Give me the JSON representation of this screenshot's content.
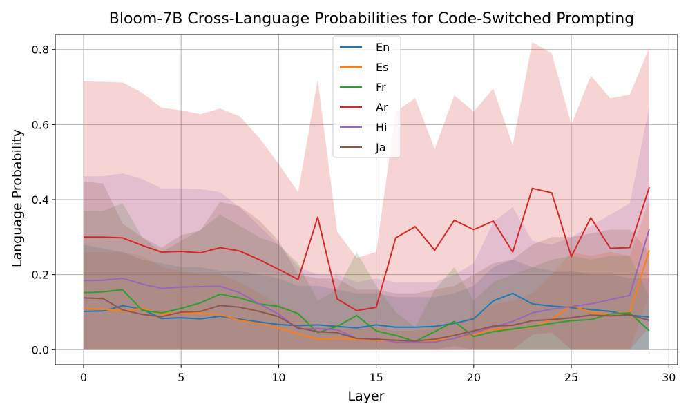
{
  "chart_data": {
    "type": "line",
    "title": "Bloom-7B Cross-Language Probabilities for Code-Switched Prompting",
    "xlabel": "Layer",
    "ylabel": "Language Probability",
    "xlim": [
      -1.45,
      30.45
    ],
    "ylim": [
      -0.04,
      0.84
    ],
    "xticks": [
      0,
      5,
      10,
      15,
      20,
      25,
      30
    ],
    "yticks": [
      0.0,
      0.2,
      0.4,
      0.6,
      0.8
    ],
    "ytick_labels": [
      "0.0",
      "0.2",
      "0.4",
      "0.6",
      "0.8"
    ],
    "grid": true,
    "legend_position": "top-center",
    "x": [
      0,
      1,
      2,
      3,
      4,
      5,
      6,
      7,
      8,
      9,
      10,
      11,
      12,
      13,
      14,
      15,
      16,
      17,
      18,
      19,
      20,
      21,
      22,
      23,
      24,
      25,
      26,
      27,
      28,
      29
    ],
    "series": [
      {
        "name": "En",
        "color": "#1f77b4",
        "values": [
          0.102,
          0.103,
          0.117,
          0.108,
          0.083,
          0.085,
          0.082,
          0.089,
          0.081,
          0.074,
          0.067,
          0.064,
          0.066,
          0.062,
          0.058,
          0.066,
          0.06,
          0.06,
          0.062,
          0.07,
          0.082,
          0.13,
          0.15,
          0.122,
          0.116,
          0.112,
          0.107,
          0.102,
          0.092,
          0.087
        ],
        "upper": [
          0.28,
          0.27,
          0.26,
          0.24,
          0.23,
          0.22,
          0.22,
          0.21,
          0.21,
          0.2,
          0.19,
          0.17,
          0.17,
          0.16,
          0.15,
          0.15,
          0.14,
          0.14,
          0.14,
          0.15,
          0.17,
          0.22,
          0.24,
          0.22,
          0.21,
          0.21,
          0.2,
          0.2,
          0.19,
          0.19
        ],
        "lower": [
          0,
          0,
          0,
          0,
          0,
          0,
          0,
          0,
          0,
          0,
          0,
          0,
          0,
          0,
          0,
          0,
          0,
          0,
          0,
          0,
          0,
          0,
          0,
          0,
          0,
          0,
          0,
          0,
          0,
          0
        ]
      },
      {
        "name": "Es",
        "color": "#ff7f0e",
        "values": [
          0.11,
          0.108,
          0.103,
          0.11,
          0.095,
          0.097,
          0.097,
          0.094,
          0.078,
          0.07,
          0.058,
          0.042,
          0.028,
          0.03,
          0.028,
          0.026,
          0.022,
          0.022,
          0.025,
          0.03,
          0.04,
          0.055,
          0.055,
          0.06,
          0.08,
          0.118,
          0.1,
          0.095,
          0.1,
          0.265
        ],
        "upper": [
          0.26,
          0.26,
          0.26,
          0.25,
          0.22,
          0.21,
          0.2,
          0.2,
          0.18,
          0.15,
          0.12,
          0.1,
          0.06,
          0.06,
          0.06,
          0.06,
          0.05,
          0.05,
          0.06,
          0.07,
          0.09,
          0.12,
          0.13,
          0.15,
          0.2,
          0.26,
          0.25,
          0.26,
          0.25,
          0.4
        ],
        "lower": [
          0,
          0,
          0,
          0,
          0,
          0,
          0,
          0,
          0,
          0,
          0,
          0,
          0,
          0,
          0,
          0,
          0,
          0,
          0,
          0,
          0,
          0,
          0,
          0,
          0,
          0,
          0,
          0,
          0,
          0.15
        ]
      },
      {
        "name": "Fr",
        "color": "#2ca02c",
        "values": [
          0.152,
          0.154,
          0.16,
          0.105,
          0.098,
          0.11,
          0.125,
          0.148,
          0.138,
          0.122,
          0.115,
          0.096,
          0.045,
          0.062,
          0.091,
          0.05,
          0.038,
          0.022,
          0.048,
          0.075,
          0.035,
          0.048,
          0.055,
          0.062,
          0.07,
          0.077,
          0.08,
          0.095,
          0.098,
          0.05
        ],
        "upper": [
          0.37,
          0.37,
          0.39,
          0.3,
          0.26,
          0.29,
          0.32,
          0.36,
          0.33,
          0.3,
          0.28,
          0.23,
          0.13,
          0.16,
          0.26,
          0.17,
          0.1,
          0.06,
          0.16,
          0.22,
          0.13,
          0.18,
          0.2,
          0.22,
          0.24,
          0.25,
          0.24,
          0.25,
          0.25,
          0.14
        ],
        "lower": [
          0,
          0,
          0,
          0,
          0,
          0,
          0,
          0,
          0,
          0,
          0,
          0,
          0,
          0,
          0,
          0,
          0,
          0,
          0,
          0.01,
          0,
          0,
          0,
          0,
          0,
          0,
          0,
          0,
          0,
          0
        ]
      },
      {
        "name": "Ar",
        "color": "#d62728",
        "values": [
          0.3,
          0.3,
          0.298,
          0.278,
          0.26,
          0.262,
          0.258,
          0.272,
          0.263,
          0.24,
          0.214,
          0.187,
          0.353,
          0.135,
          0.104,
          0.113,
          0.298,
          0.328,
          0.265,
          0.345,
          0.32,
          0.343,
          0.26,
          0.43,
          0.418,
          0.248,
          0.352,
          0.27,
          0.272,
          0.433
        ],
        "upper": [
          0.715,
          0.714,
          0.712,
          0.685,
          0.645,
          0.638,
          0.628,
          0.643,
          0.622,
          0.565,
          0.495,
          0.42,
          0.72,
          0.315,
          0.245,
          0.26,
          0.635,
          0.67,
          0.535,
          0.678,
          0.635,
          0.696,
          0.545,
          0.82,
          0.79,
          0.6,
          0.73,
          0.67,
          0.68,
          0.805
        ],
        "lower": [
          0,
          0,
          0,
          0,
          0,
          0,
          0,
          0,
          0,
          0,
          0,
          0,
          0,
          0,
          0,
          0,
          0,
          0,
          0,
          0,
          0,
          0,
          0,
          0.04,
          0.045,
          0,
          0,
          0,
          0,
          0.06
        ]
      },
      {
        "name": "Hi",
        "color": "#9467bd",
        "values": [
          0.184,
          0.185,
          0.19,
          0.175,
          0.163,
          0.167,
          0.168,
          0.169,
          0.152,
          0.122,
          0.095,
          0.055,
          0.056,
          0.053,
          0.03,
          0.03,
          0.02,
          0.02,
          0.02,
          0.03,
          0.045,
          0.06,
          0.075,
          0.098,
          0.108,
          0.115,
          0.122,
          0.133,
          0.145,
          0.322
        ],
        "upper": [
          0.462,
          0.462,
          0.47,
          0.455,
          0.43,
          0.43,
          0.428,
          0.42,
          0.38,
          0.33,
          0.28,
          0.22,
          0.2,
          0.2,
          0.18,
          0.19,
          0.18,
          0.18,
          0.18,
          0.2,
          0.23,
          0.34,
          0.38,
          0.29,
          0.28,
          0.3,
          0.33,
          0.36,
          0.39,
          0.65
        ],
        "lower": [
          0,
          0,
          0,
          0,
          0,
          0,
          0,
          0,
          0,
          0,
          0,
          0,
          0,
          0,
          0,
          0,
          0,
          0,
          0,
          0,
          0,
          0,
          0,
          0,
          0,
          0,
          0,
          0,
          0,
          0
        ]
      },
      {
        "name": "Ja",
        "color": "#8c564b",
        "values": [
          0.138,
          0.136,
          0.106,
          0.094,
          0.088,
          0.1,
          0.102,
          0.118,
          0.113,
          0.102,
          0.088,
          0.058,
          0.048,
          0.045,
          0.03,
          0.028,
          0.025,
          0.023,
          0.028,
          0.038,
          0.05,
          0.063,
          0.065,
          0.077,
          0.08,
          0.085,
          0.092,
          0.09,
          0.093,
          0.078
        ],
        "upper": [
          0.448,
          0.443,
          0.336,
          0.3,
          0.272,
          0.305,
          0.318,
          0.394,
          0.382,
          0.345,
          0.29,
          0.2,
          0.19,
          0.19,
          0.16,
          0.16,
          0.15,
          0.15,
          0.16,
          0.17,
          0.2,
          0.23,
          0.24,
          0.28,
          0.3,
          0.3,
          0.31,
          0.32,
          0.32,
          0.26
        ],
        "lower": [
          0,
          0,
          0,
          0,
          0,
          0,
          0,
          0,
          0,
          0,
          0,
          0,
          0,
          0,
          0,
          0,
          0,
          0,
          0,
          0,
          0,
          0,
          0,
          0,
          0,
          0,
          0,
          0,
          0,
          0
        ]
      }
    ]
  }
}
